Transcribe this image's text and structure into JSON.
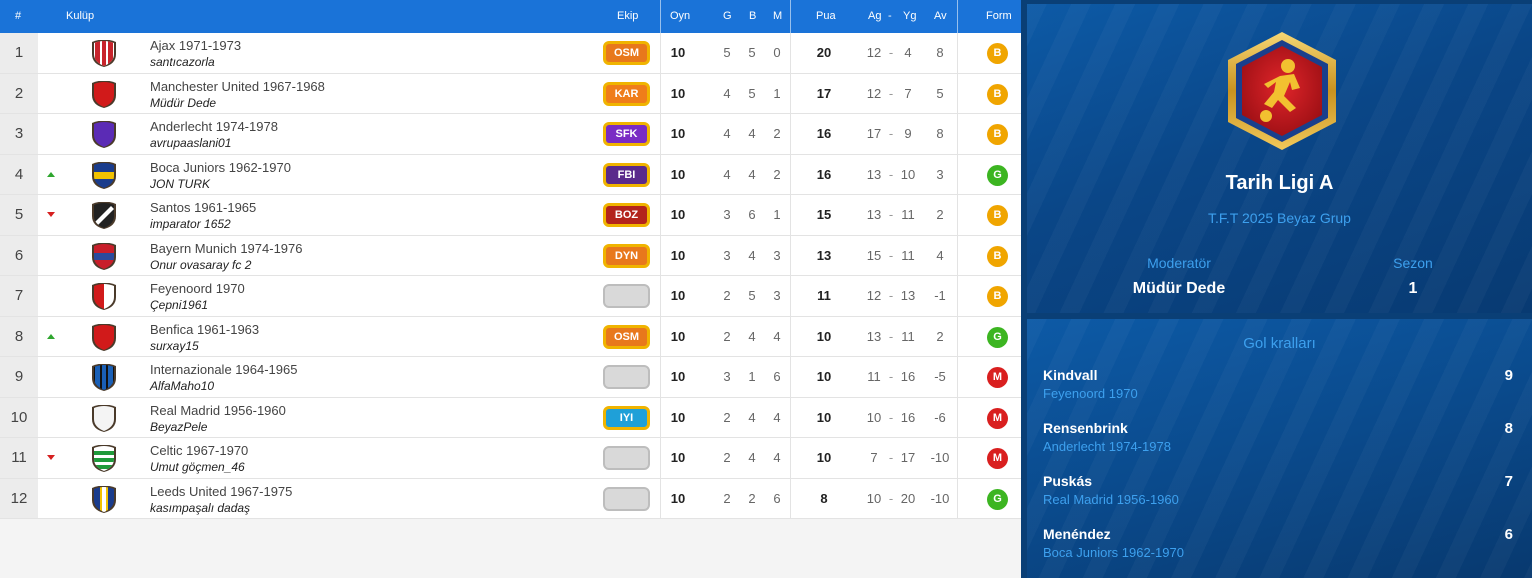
{
  "table": {
    "headers": {
      "rank": "#",
      "club": "Kulüp",
      "ekip": "Ekip",
      "played": "Oyn",
      "won": "G",
      "drawn": "B",
      "lost": "M",
      "points": "Pua",
      "gf": "Ag",
      "dash": "-",
      "ga": "Yg",
      "diff": "Av",
      "form": "Form"
    },
    "rows": [
      {
        "rank": "1",
        "trend": "",
        "club": "Ajax 1971-1973",
        "manager": "santıcazorla",
        "crest": [
          "#c8242b",
          "#ffffff"
        ],
        "crest_style": "vstripe",
        "ekip": "OSM",
        "ekip_color": "#e8781c",
        "played": "10",
        "won": "5",
        "drawn": "5",
        "lost": "0",
        "points": "20",
        "gf": "12",
        "ga": "4",
        "diff": "8",
        "form": "B",
        "form_color": "#f0a500"
      },
      {
        "rank": "2",
        "trend": "",
        "club": "Manchester United 1967-1968",
        "manager": "Müdür Dede",
        "crest": [
          "#d11a1a",
          "#d11a1a"
        ],
        "crest_style": "solid",
        "ekip": "KAR",
        "ekip_color": "#ef7d1a",
        "played": "10",
        "won": "4",
        "drawn": "5",
        "lost": "1",
        "points": "17",
        "gf": "12",
        "ga": "7",
        "diff": "5",
        "form": "B",
        "form_color": "#f0a500"
      },
      {
        "rank": "3",
        "trend": "",
        "club": "Anderlecht 1974-1978",
        "manager": "avrupaaslani01",
        "crest": [
          "#5b2bb5",
          "#5b2bb5"
        ],
        "crest_style": "solid",
        "ekip": "SFK",
        "ekip_color": "#7a2bc4",
        "played": "10",
        "won": "4",
        "drawn": "4",
        "lost": "2",
        "points": "16",
        "gf": "17",
        "ga": "9",
        "diff": "8",
        "form": "B",
        "form_color": "#f0a500"
      },
      {
        "rank": "4",
        "trend": "up",
        "club": "Boca Juniors 1962-1970",
        "manager": "JON TURK",
        "crest": [
          "#1a3c8c",
          "#f2c200"
        ],
        "crest_style": "hband",
        "ekip": "FBI",
        "ekip_color": "#5a2a8c",
        "played": "10",
        "won": "4",
        "drawn": "4",
        "lost": "2",
        "points": "16",
        "gf": "13",
        "ga": "10",
        "diff": "3",
        "form": "G",
        "form_color": "#3cb521"
      },
      {
        "rank": "5",
        "trend": "down",
        "club": "Santos 1961-1965",
        "manager": "imparator 1652",
        "crest": [
          "#222222",
          "#ffffff"
        ],
        "crest_style": "diag",
        "ekip": "BOZ",
        "ekip_color": "#b3241c",
        "played": "10",
        "won": "3",
        "drawn": "6",
        "lost": "1",
        "points": "15",
        "gf": "13",
        "ga": "11",
        "diff": "2",
        "form": "B",
        "form_color": "#f0a500"
      },
      {
        "rank": "6",
        "trend": "",
        "club": "Bayern Munich 1974-1976",
        "manager": "Onur ovasaray fc 2",
        "crest": [
          "#c81e2a",
          "#2a4a9c"
        ],
        "crest_style": "hband",
        "ekip": "DYN",
        "ekip_color": "#e8781c",
        "played": "10",
        "won": "3",
        "drawn": "4",
        "lost": "3",
        "points": "13",
        "gf": "15",
        "ga": "11",
        "diff": "4",
        "form": "B",
        "form_color": "#f0a500"
      },
      {
        "rank": "7",
        "trend": "",
        "club": "Feyenoord 1970",
        "manager": "Çepni1961",
        "crest": [
          "#d11a1a",
          "#ffffff"
        ],
        "crest_style": "vhalf",
        "ekip": "",
        "ekip_color": "",
        "played": "10",
        "won": "2",
        "drawn": "5",
        "lost": "3",
        "points": "11",
        "gf": "12",
        "ga": "13",
        "diff": "-1",
        "form": "B",
        "form_color": "#f0a500"
      },
      {
        "rank": "8",
        "trend": "up",
        "club": "Benfica 1961-1963",
        "manager": "surxay15",
        "crest": [
          "#d11a1a",
          "#d11a1a"
        ],
        "crest_style": "solid",
        "ekip": "OSM",
        "ekip_color": "#e8781c",
        "played": "10",
        "won": "2",
        "drawn": "4",
        "lost": "4",
        "points": "10",
        "gf": "13",
        "ga": "11",
        "diff": "2",
        "form": "G",
        "form_color": "#3cb521"
      },
      {
        "rank": "9",
        "trend": "",
        "club": "Internazionale 1964-1965",
        "manager": "AlfaMaho10",
        "crest": [
          "#1a5fb5",
          "#111111"
        ],
        "crest_style": "vstripe",
        "ekip": "",
        "ekip_color": "",
        "played": "10",
        "won": "3",
        "drawn": "1",
        "lost": "6",
        "points": "10",
        "gf": "11",
        "ga": "16",
        "diff": "-5",
        "form": "M",
        "form_color": "#d91f1f"
      },
      {
        "rank": "10",
        "trend": "",
        "club": "Real Madrid 1956-1960",
        "manager": "BeyazPele",
        "crest": [
          "#f4f4f4",
          "#f4f4f4"
        ],
        "crest_style": "solid",
        "ekip": "IYI",
        "ekip_color": "#1fa0d8",
        "played": "10",
        "won": "2",
        "drawn": "4",
        "lost": "4",
        "points": "10",
        "gf": "10",
        "ga": "16",
        "diff": "-6",
        "form": "M",
        "form_color": "#d91f1f"
      },
      {
        "rank": "11",
        "trend": "down",
        "club": "Celtic 1967-1970",
        "manager": "Umut göçmen_46",
        "crest": [
          "#1f9a3a",
          "#ffffff"
        ],
        "crest_style": "hstripe",
        "ekip": "",
        "ekip_color": "",
        "played": "10",
        "won": "2",
        "drawn": "4",
        "lost": "4",
        "points": "10",
        "gf": "7",
        "ga": "17",
        "diff": "-10",
        "form": "M",
        "form_color": "#d91f1f"
      },
      {
        "rank": "12",
        "trend": "",
        "club": "Leeds United 1967-1975",
        "manager": "kasımpaşalı dadaş",
        "crest": [
          "#ffffff",
          "#1a3c8c"
        ],
        "crest_style": "vband",
        "ekip": "",
        "ekip_color": "",
        "played": "10",
        "won": "2",
        "drawn": "2",
        "lost": "6",
        "points": "8",
        "gf": "10",
        "ga": "20",
        "diff": "-10",
        "form": "G",
        "form_color": "#3cb521"
      }
    ]
  },
  "league": {
    "title": "Tarih Ligi A",
    "subtitle": "T.F.T 2025 Beyaz Grup",
    "moderator_label": "Moderatör",
    "moderator_value": "Müdür Dede",
    "season_label": "Sezon",
    "season_value": "1",
    "badge_icon": "football-player-icon"
  },
  "scorers": {
    "title": "Gol kralları",
    "items": [
      {
        "name": "Kindvall",
        "club": "Feyenoord 1970",
        "goals": "9"
      },
      {
        "name": "Rensenbrink",
        "club": "Anderlecht 1974-1978",
        "goals": "8"
      },
      {
        "name": "Puskás",
        "club": "Real Madrid 1956-1960",
        "goals": "7"
      },
      {
        "name": "Menéndez",
        "club": "Boca Juniors 1962-1970",
        "goals": "6"
      }
    ]
  },
  "colors": {
    "header_blue": "#1a73d8",
    "panel_blue": "#0a4687",
    "accent_light_blue": "#3da0ee",
    "form_B": "#f0a500",
    "form_G": "#3cb521",
    "form_M": "#d91f1f"
  }
}
